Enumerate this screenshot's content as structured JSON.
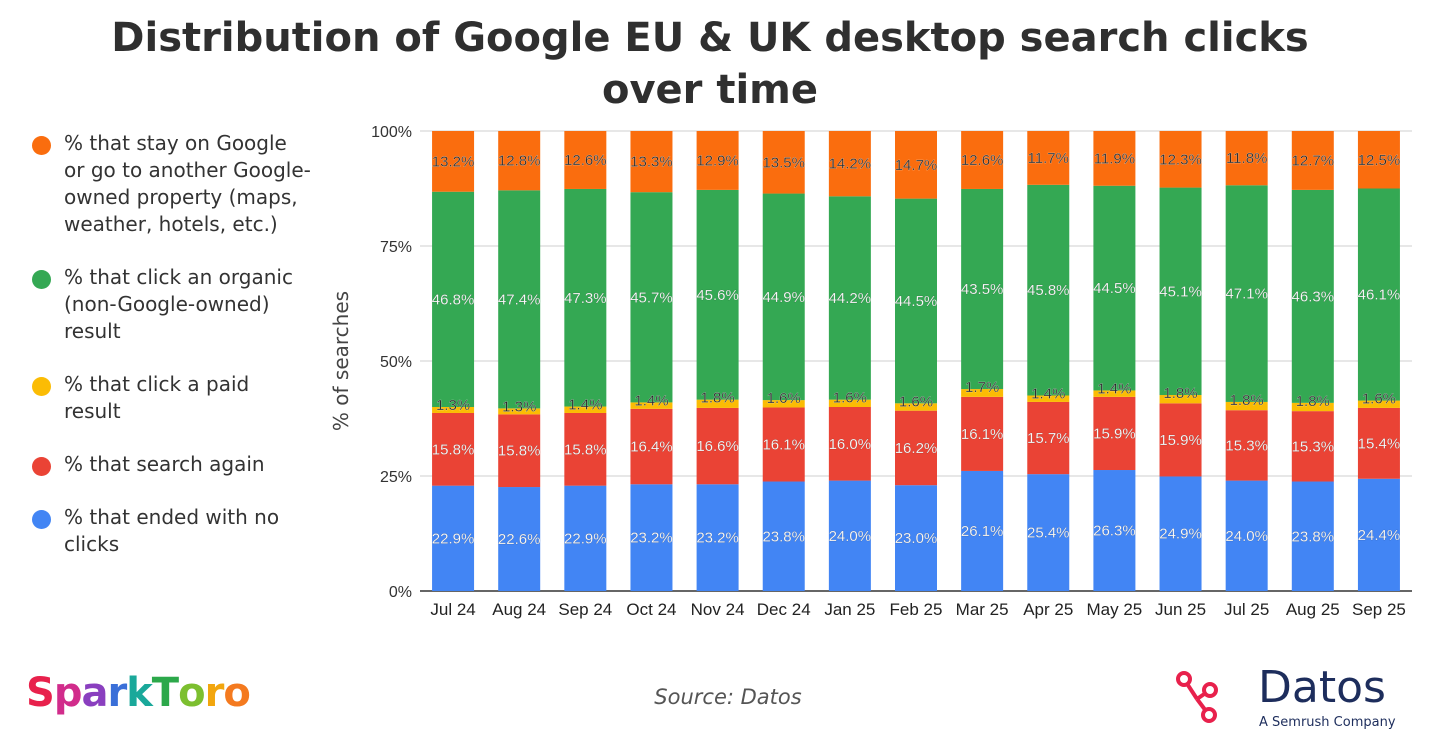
{
  "title": "Distribution of Google EU & UK desktop search clicks over time",
  "legend": [
    {
      "label": "% that stay on Google or go to another Google-owned property (maps, weather, hotels, etc.)",
      "color": "#fa6d0e"
    },
    {
      "label": "% that click an organic (non-Google-owned) result",
      "color": "#34a853"
    },
    {
      "label": "% that click a paid result",
      "color": "#fbbc04"
    },
    {
      "label": "% that search again",
      "color": "#ea4335"
    },
    {
      "label": "% that ended with no clicks",
      "color": "#4285f4"
    }
  ],
  "chart_data": {
    "type": "bar",
    "stacked": true,
    "title": "Distribution of Google EU & UK desktop search clicks over time",
    "xlabel": "",
    "ylabel": "% of searches",
    "ylim": [
      0,
      100
    ],
    "yticks": [
      "0%",
      "25%",
      "50%",
      "75%",
      "100%"
    ],
    "categories": [
      "Jul 24",
      "Aug 24",
      "Sep 24",
      "Oct 24",
      "Nov 24",
      "Dec 24",
      "Jan 25",
      "Feb 25",
      "Mar 25",
      "Apr 25",
      "May 25",
      "Jun 25",
      "Jul 25",
      "Aug 25",
      "Sep 25"
    ],
    "series": [
      {
        "name": "% that ended with no clicks",
        "color": "#4285f4",
        "label_color": "#ffffff",
        "values": [
          22.9,
          22.6,
          22.9,
          23.2,
          23.2,
          23.8,
          24.0,
          23.0,
          26.1,
          25.4,
          26.3,
          24.9,
          24.0,
          23.8,
          24.4
        ],
        "labels": [
          "22.9%",
          "22.6%",
          "22.9%",
          "23.2%",
          "23.2%",
          "23.8%",
          "24.0%",
          "23.0%",
          "26.1%",
          "25.4%",
          "26.3%",
          "24.9%",
          "24.0%",
          "23.8%",
          "24.4%"
        ]
      },
      {
        "name": "% that search again",
        "color": "#ea4335",
        "label_color": "#ffffff",
        "values": [
          15.8,
          15.8,
          15.8,
          16.4,
          16.6,
          16.1,
          16.0,
          16.2,
          16.1,
          15.7,
          15.9,
          15.9,
          15.3,
          15.3,
          15.4
        ],
        "labels": [
          "15.8%",
          "15.8%",
          "15.8%",
          "16.4%",
          "16.6%",
          "16.1%",
          "16.0%",
          "16.2%",
          "16.1%",
          "15.7%",
          "15.9%",
          "15.9%",
          "15.3%",
          "15.3%",
          "15.4%"
        ]
      },
      {
        "name": "% that click a paid result",
        "color": "#fbbc04",
        "label_color": "#222222",
        "values": [
          1.3,
          1.3,
          1.4,
          1.4,
          1.8,
          1.6,
          1.6,
          1.6,
          1.7,
          1.4,
          1.4,
          1.8,
          1.8,
          1.8,
          1.6
        ],
        "labels": [
          "1.3%",
          "1.3%",
          "1.4%",
          "1.4%",
          "1.8%",
          "1.6%",
          "1.6%",
          "1.6%",
          "1.7%",
          "1.4%",
          "1.4%",
          "1.8%",
          "1.8%",
          "1.8%",
          "1.6%"
        ]
      },
      {
        "name": "% that click an organic (non-Google-owned) result",
        "color": "#34a853",
        "label_color": "#ffffff",
        "values": [
          46.8,
          47.4,
          47.3,
          45.7,
          45.6,
          44.9,
          44.2,
          44.5,
          43.5,
          45.8,
          44.5,
          45.1,
          47.1,
          46.3,
          46.1
        ],
        "labels": [
          "46.8%",
          "47.4%",
          "47.3%",
          "45.7%",
          "45.6%",
          "44.9%",
          "44.2%",
          "44.5%",
          "43.5%",
          "45.8%",
          "44.5%",
          "45.1%",
          "47.1%",
          "46.3%",
          "46.1%"
        ]
      },
      {
        "name": "% that stay on Google or go to another Google-owned property (maps, weather, hotels, etc.)",
        "color": "#fa6d0e",
        "label_color": "#222222",
        "values": [
          13.2,
          12.8,
          12.6,
          13.3,
          12.9,
          13.5,
          14.2,
          14.7,
          12.6,
          11.7,
          11.9,
          12.3,
          11.8,
          12.7,
          12.5
        ],
        "labels": [
          "13.2%",
          "12.8%",
          "12.6%",
          "13.3%",
          "12.9%",
          "13.5%",
          "14.2%",
          "14.7%",
          "12.6%",
          "11.7%",
          "11.9%",
          "12.3%",
          "11.8%",
          "12.7%",
          "12.5%"
        ]
      }
    ]
  },
  "footer": {
    "source": "Source: Datos",
    "brand_left": "SparkToro",
    "brand_right": "Datos",
    "brand_right_sub": "A Semrush Company"
  }
}
